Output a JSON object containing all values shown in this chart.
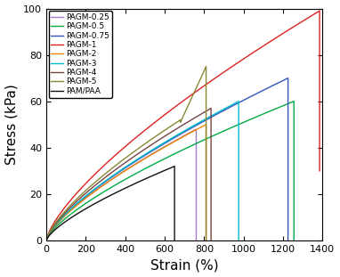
{
  "title": "",
  "xlabel": "Strain (%)",
  "ylabel": "Stress (kPa)",
  "xlim": [
    0,
    1400
  ],
  "ylim": [
    0,
    100
  ],
  "xticks": [
    0,
    200,
    400,
    600,
    800,
    1000,
    1200,
    1400
  ],
  "yticks": [
    0,
    20,
    40,
    60,
    80,
    100
  ],
  "series": [
    {
      "label": "PAGM-0.25",
      "color": "#a07ccc",
      "max_strain": 760,
      "max_stress": 48,
      "break_stress": 0,
      "power": 0.72
    },
    {
      "label": "PAGM-0.5",
      "color": "#00aa44",
      "max_strain": 1255,
      "max_stress": 60,
      "break_stress": 0,
      "power": 0.72
    },
    {
      "label": "PAGM-0.75",
      "color": "#3355bb",
      "max_strain": 1225,
      "max_stress": 70,
      "break_stress": 0,
      "power": 0.72
    },
    {
      "label": "PAGM-1",
      "color": "#dd2222",
      "max_strain": 1385,
      "max_stress": 99,
      "break_stress": 30,
      "power": 0.72
    },
    {
      "label": "PAGM-2",
      "color": "#ee8800",
      "max_strain": 810,
      "max_stress": 50,
      "break_stress": 0,
      "power": 0.72
    },
    {
      "label": "PAGM-3",
      "color": "#00bbcc",
      "max_strain": 975,
      "max_stress": 60,
      "break_stress": 0,
      "power": 0.72
    },
    {
      "label": "PAGM-4",
      "color": "#774444",
      "max_strain": 835,
      "max_stress": 57,
      "break_stress": 0,
      "power": 0.72
    },
    {
      "label": "PAGM-5",
      "color": "#888833",
      "max_strain": 810,
      "max_stress": 75,
      "break_stress": 0,
      "power": 0.72,
      "hump": true,
      "hump_strain": 680,
      "hump_stress": 52,
      "post_hump_stress": 51,
      "final_stress": 75
    },
    {
      "label": "PAM/PAA",
      "color": "#111111",
      "max_strain": 650,
      "max_stress": 32,
      "break_stress": 0,
      "power": 0.72
    }
  ],
  "figsize": [
    3.82,
    3.11
  ],
  "dpi": 100,
  "linewidth": 1.0,
  "legend_fontsize": 6.5,
  "tick_labelsize": 8,
  "axis_labelsize": 11
}
